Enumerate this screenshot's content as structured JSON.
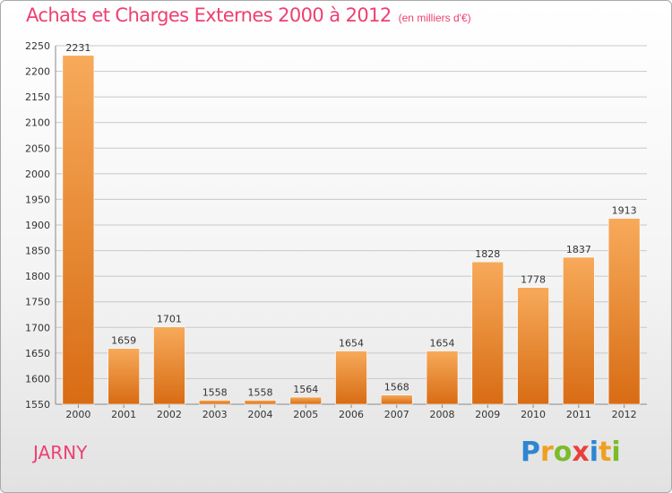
{
  "header": {
    "title": "Achats et Charges Externes 2000 à 2012",
    "unit": "(en milliers d'€)"
  },
  "footer": {
    "commune": "JARNY",
    "logo_letters": [
      {
        "ch": "P",
        "color": "#2e86d1"
      },
      {
        "ch": "r",
        "color": "#f0a020"
      },
      {
        "ch": "o",
        "color": "#7cbb2c"
      },
      {
        "ch": "x",
        "color": "#e8413c"
      },
      {
        "ch": "i",
        "color": "#2e86d1"
      },
      {
        "ch": "t",
        "color": "#f0a020"
      },
      {
        "ch": "i",
        "color": "#7cbb2c"
      }
    ]
  },
  "colors": {
    "bar_light": "#f7aa5a",
    "bar_dark": "#d86c14",
    "title": "#ee3f72",
    "grid": "#c8c8c8"
  },
  "chart_data": {
    "type": "bar",
    "title": "Achats et Charges Externes 2000 à 2012",
    "categories": [
      "2000",
      "2001",
      "2002",
      "2003",
      "2004",
      "2005",
      "2006",
      "2007",
      "2008",
      "2009",
      "2010",
      "2011",
      "2012"
    ],
    "values": [
      2231,
      1659,
      1701,
      1558,
      1558,
      1564,
      1654,
      1568,
      1654,
      1828,
      1778,
      1837,
      1913
    ],
    "ylim": [
      1550,
      2250
    ],
    "yticks": [
      1550,
      1600,
      1650,
      1700,
      1750,
      1800,
      1850,
      1900,
      1950,
      2000,
      2050,
      2100,
      2150,
      2200,
      2250
    ],
    "grid": true,
    "xlabel": "",
    "ylabel": ""
  }
}
